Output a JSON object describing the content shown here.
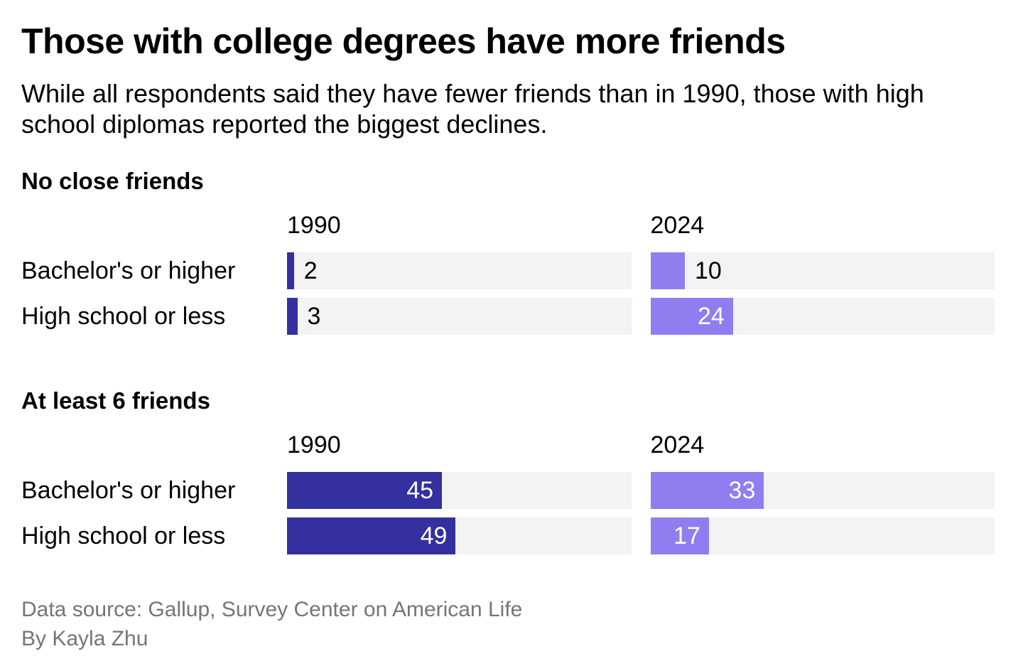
{
  "title": "Those with college degrees have more friends",
  "subtitle": "While all respondents said they have fewer friends than in 1990, those with high school diplomas reported the biggest declines.",
  "footer": {
    "source": "Data source: Gallup, Survey Center on American Life",
    "byline": "By Kayla Zhu"
  },
  "colors": {
    "series_1990": "#34309F",
    "series_2024": "#8F7EF0",
    "track": "#F3F3F3",
    "value_inside": "#FFFFFF",
    "value_outside": "#000000",
    "footer_text": "#757575"
  },
  "chart_data": [
    {
      "type": "bar",
      "orientation": "horizontal",
      "title": "No close friends",
      "categories": [
        "Bachelor's or higher",
        "High school or less"
      ],
      "series": [
        {
          "name": "1990",
          "values": [
            2,
            3
          ]
        },
        {
          "name": "2024",
          "values": [
            10,
            24
          ]
        }
      ],
      "xlim": [
        0,
        100
      ],
      "value_labels": true,
      "grid": false,
      "legend_position": "column-headers"
    },
    {
      "type": "bar",
      "orientation": "horizontal",
      "title": "At least 6 friends",
      "categories": [
        "Bachelor's or higher",
        "High school or less"
      ],
      "series": [
        {
          "name": "1990",
          "values": [
            45,
            49
          ]
        },
        {
          "name": "2024",
          "values": [
            33,
            17
          ]
        }
      ],
      "xlim": [
        0,
        100
      ],
      "value_labels": true,
      "grid": false,
      "legend_position": "column-headers"
    }
  ]
}
